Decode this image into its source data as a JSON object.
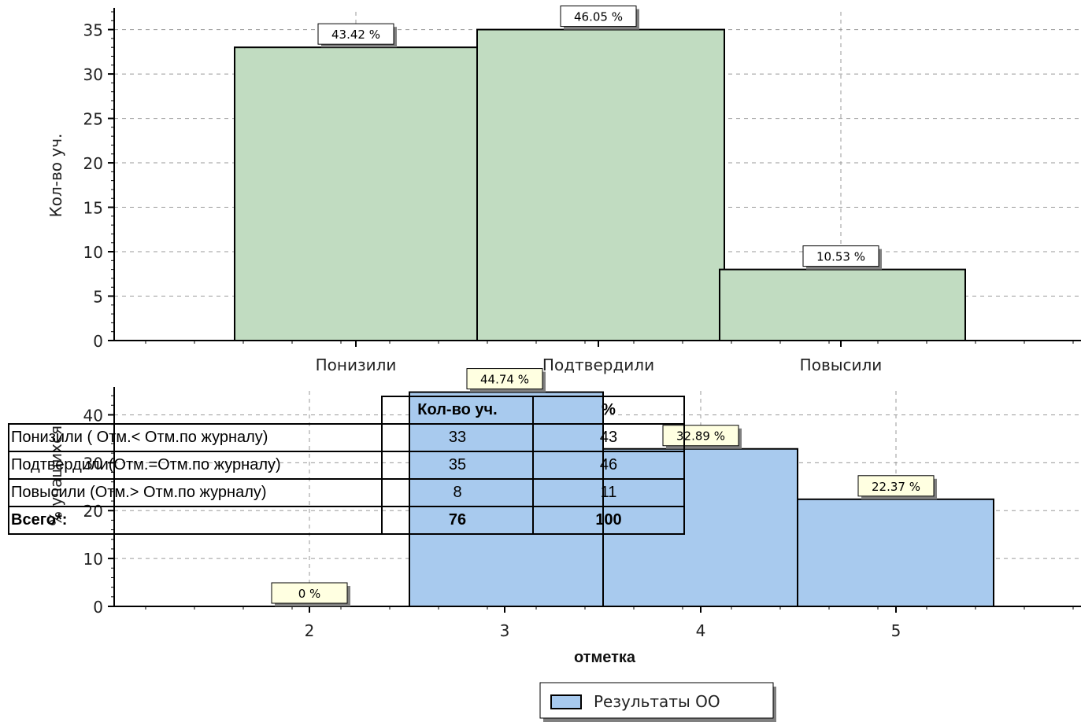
{
  "chart_data": [
    {
      "type": "bar",
      "ylabel": "Кол-во уч.",
      "xlabel": "",
      "categories": [
        "Понизили",
        "Подтвердили",
        "Повысили"
      ],
      "values": [
        33,
        35,
        8
      ],
      "data_labels": [
        "43.42 %",
        "46.05 %",
        "10.53 %"
      ],
      "ylim": [
        0,
        37
      ],
      "yticks": [
        0,
        5,
        10,
        15,
        20,
        25,
        30,
        35
      ],
      "bar_color": "#c1dcc1",
      "grid": true
    },
    {
      "type": "bar",
      "ylabel": "% учащихся",
      "xlabel": "отметка",
      "categories": [
        "2",
        "3",
        "4",
        "5"
      ],
      "values": [
        0,
        44.74,
        32.89,
        22.37
      ],
      "data_labels": [
        "0 %",
        "44.74 %",
        "32.89 %",
        "22.37 %"
      ],
      "ylim": [
        0,
        45
      ],
      "yticks": [
        0,
        10,
        20,
        30,
        40
      ],
      "bar_color": "#a8caee",
      "grid": true,
      "legend": [
        "Результаты ОО"
      ],
      "legend_position": "bottom-center"
    }
  ],
  "table": {
    "headers": [
      "",
      "Кол-во уч.",
      "%"
    ],
    "rows": [
      {
        "label": "Понизили ( Отм.< Отм.по журналу)",
        "count": "33",
        "percent": "43"
      },
      {
        "label": "Подтвердили(Отм.=Отм.по журналу)",
        "count": "35",
        "percent": "46"
      },
      {
        "label": "Повысили (Отм.> Отм.по журналу)",
        "count": "8",
        "percent": "11"
      },
      {
        "label": "Всего*:",
        "count": "76",
        "percent": "100"
      }
    ]
  }
}
